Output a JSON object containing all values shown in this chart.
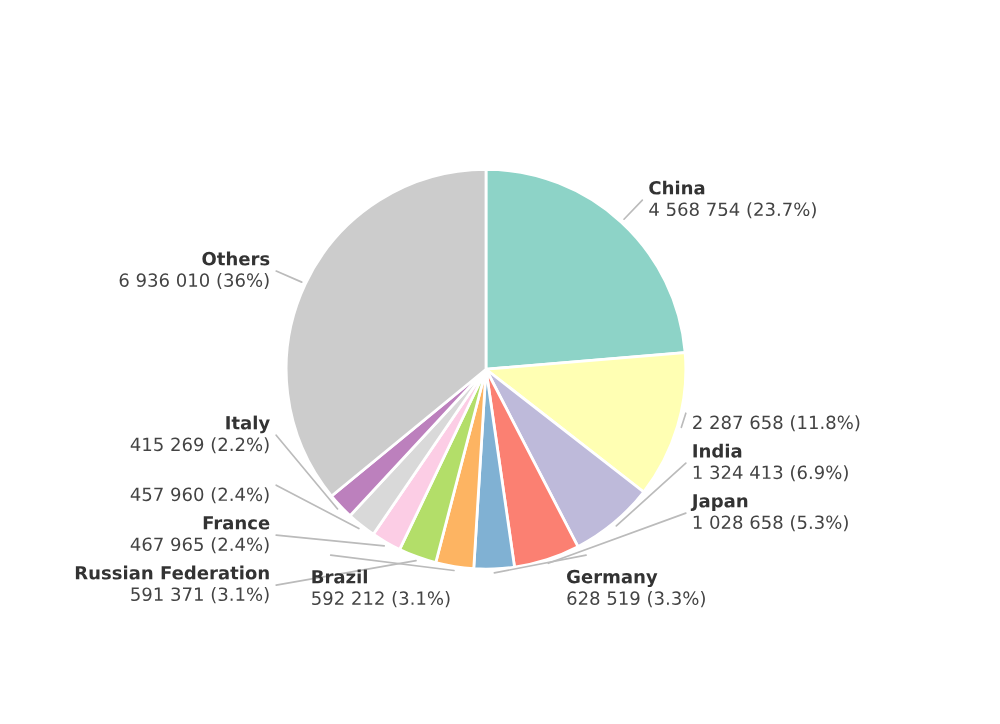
{
  "chart_data": {
    "type": "pie",
    "categories": [
      "China",
      null,
      "India",
      "Japan",
      "Germany",
      "Brazil",
      "Russian Federation",
      "France",
      null,
      "Italy",
      "Others"
    ],
    "values": [
      4568754,
      2287658,
      1324413,
      1028658,
      628519,
      592212,
      591371,
      467965,
      457960,
      415269,
      6936010
    ],
    "value_labels": [
      "4 568 754 (23.7%)",
      "2 287 658 (11.8%)",
      "1 324 413 (6.9%)",
      "1 028 658 (5.3%)",
      "628 519 (3.3%)",
      "592 212 (3.1%)",
      "591 371 (3.1%)",
      "467 965 (2.4%)",
      "457 960 (2.4%)",
      "415 269 (2.2%)",
      "6 936 010 (36%)"
    ],
    "colors": [
      "#8dd3c7",
      "#ffffb3",
      "#bebada",
      "#fb8072",
      "#80b1d3",
      "#fdb462",
      "#b3de69",
      "#fccde5",
      "#d9d9d9",
      "#bc80bd",
      "#cccccc"
    ]
  }
}
